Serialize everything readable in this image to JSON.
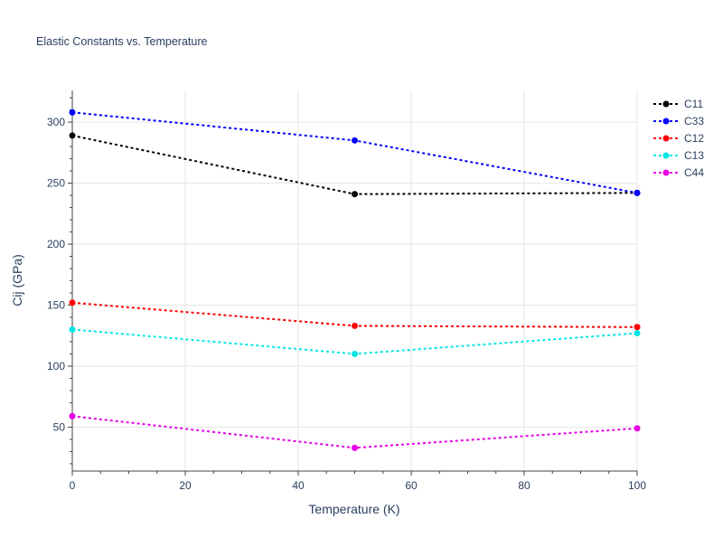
{
  "chart_data": {
    "type": "line",
    "title": "Elastic Constants vs. Temperature",
    "xlabel": "Temperature (K)",
    "ylabel": "Cij (GPa)",
    "x": [
      0,
      50,
      100
    ],
    "xlim": [
      0,
      100
    ],
    "ylim": [
      14,
      326
    ],
    "xticks": [
      0,
      20,
      40,
      60,
      80,
      100
    ],
    "yticks": [
      50,
      100,
      150,
      200,
      250,
      300
    ],
    "grid": true,
    "legend_position": "top-right",
    "series": [
      {
        "name": "C11",
        "color": "#000000",
        "values": [
          289,
          241,
          242
        ]
      },
      {
        "name": "C33",
        "color": "#0000ff",
        "values": [
          308,
          285,
          242
        ]
      },
      {
        "name": "C12",
        "color": "#ff0000",
        "values": [
          152,
          133,
          132
        ]
      },
      {
        "name": "C13",
        "color": "#00e6e6",
        "values": [
          130,
          110,
          127
        ]
      },
      {
        "name": "C44",
        "color": "#e600e6",
        "values": [
          59,
          33,
          49
        ]
      }
    ]
  }
}
